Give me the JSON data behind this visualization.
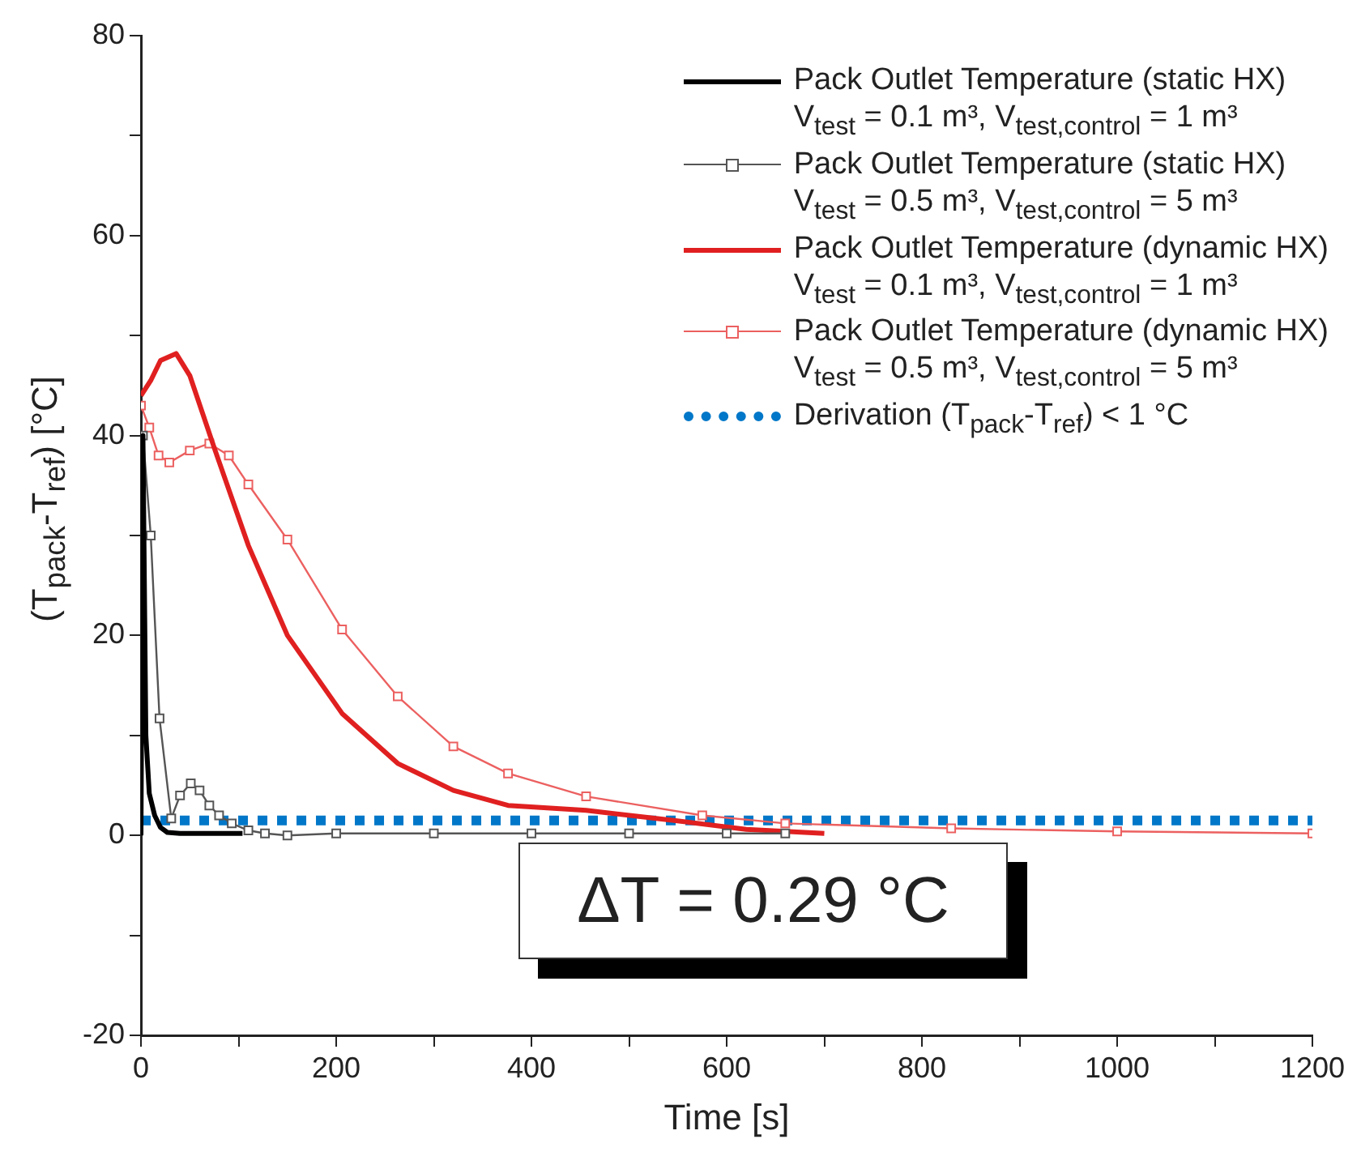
{
  "chart_data": {
    "type": "line",
    "xlabel": "Time [s]",
    "ylabel": "(T$_{pack}$-T$_{ref}$) [°C]",
    "xlim": [
      0,
      1200
    ],
    "ylim": [
      -20,
      80
    ],
    "xticks": [
      0,
      {
        "value": 100,
        "label": null
      },
      200,
      {
        "value": 300,
        "label": null
      },
      400,
      {
        "value": 500,
        "label": null
      },
      600,
      {
        "value": 700,
        "label": null
      },
      800,
      {
        "value": 900,
        "label": null
      },
      1000,
      {
        "value": 1100,
        "label": null
      },
      1200
    ],
    "yticks": [
      -20,
      {
        "value": -10,
        "label": null
      },
      0,
      {
        "value": 10,
        "label": null
      },
      20,
      {
        "value": 30,
        "label": null
      },
      40,
      {
        "value": 50,
        "label": null
      },
      60,
      {
        "value": 70,
        "label": null
      },
      80
    ],
    "legend": "top right",
    "annotations": [
      "ΔT = 0.29 °C"
    ],
    "series": [
      {
        "name": "Pack Outlet Temperature (static HX)\nV$_{test}$ = 0.1 m³, V$_{test,control}$ = 1 m³",
        "color": "#000000",
        "marker": "none",
        "line_style": "solid",
        "x": [
          0,
          2,
          5,
          8.5,
          14,
          20,
          27,
          40,
          60,
          104
        ],
        "values": [
          0,
          40,
          10,
          4.2,
          2,
          0.8,
          0.3,
          0.2,
          0.2,
          0.2
        ]
      },
      {
        "name": "Pack Outlet Temperature (static HX)\nV$_{test}$ = 0.5 m³, V$_{test,control}$ = 5 m³",
        "color": "#555555",
        "marker": "square",
        "line_style": "solid",
        "x": [
          2,
          10,
          19,
          31,
          40,
          51,
          60,
          70,
          80,
          93,
          110,
          127,
          150,
          200,
          300,
          400,
          500,
          600,
          660
        ],
        "values": [
          40,
          30,
          11.7,
          1.7,
          4,
          5.2,
          4.5,
          3,
          2,
          1.2,
          0.5,
          0.2,
          0,
          0.2,
          0.2,
          0.2,
          0.2,
          0.2,
          0.2
        ]
      },
      {
        "name": "Pack Outlet Temperature (dynamic HX)\nV$_{test}$ = 0.1 m³, V$_{test,control}$ = 1 m³",
        "color": "#e02020",
        "marker": "none",
        "line_style": "solid",
        "x": [
          0,
          10,
          20,
          36,
          50,
          76,
          110,
          150,
          206,
          263,
          320,
          376,
          456,
          546,
          620,
          700
        ],
        "values": [
          44,
          45.5,
          47.5,
          48.2,
          46,
          38.5,
          29,
          20,
          12.2,
          7.2,
          4.5,
          3,
          2.5,
          1.5,
          0.6,
          0.2
        ]
      },
      {
        "name": "Pack Outlet Temperature (dynamic HX)\nV$_{test}$ = 0.5 m³, V$_{test,control}$ = 5 m³",
        "color": "#ec6060",
        "marker": "square",
        "line_style": "solid",
        "x": [
          0,
          8.5,
          18,
          29,
          50,
          70,
          90,
          110,
          150,
          206,
          263,
          320,
          376,
          456,
          575,
          660,
          830,
          1000,
          1200
        ],
        "values": [
          43,
          40.8,
          38,
          37.3,
          38.5,
          39.2,
          38,
          35.1,
          29.6,
          20.6,
          13.9,
          8.9,
          6.2,
          3.9,
          2,
          1.2,
          0.7,
          0.4,
          0.2
        ]
      },
      {
        "name": "Derivation (T$_{pack}$-T$_{ref}$) < 1 °C",
        "color": "#0077c8",
        "marker": "none",
        "line_style": "dotted",
        "x": [
          0,
          1200
        ],
        "values": [
          1.5,
          1.5
        ]
      }
    ]
  }
}
